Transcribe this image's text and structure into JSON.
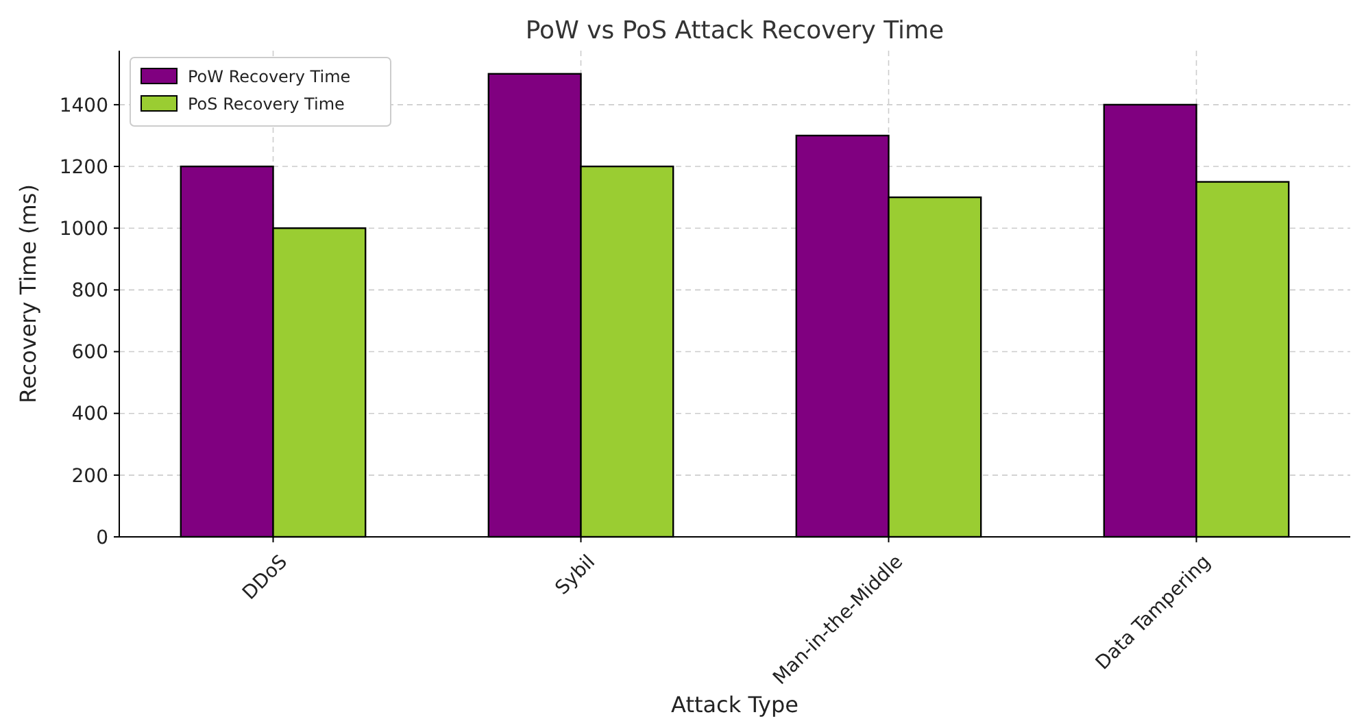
{
  "chart_data": {
    "type": "bar",
    "title": "PoW vs PoS Attack Recovery Time",
    "xlabel": "Attack Type",
    "ylabel": "Recovery Time (ms)",
    "categories": [
      "DDoS",
      "Sybil",
      "Man-in-the-Middle",
      "Data Tampering"
    ],
    "series": [
      {
        "name": "PoW Recovery Time",
        "color": "#800080",
        "values": [
          1200,
          1500,
          1300,
          1400
        ]
      },
      {
        "name": "PoS Recovery Time",
        "color": "#9acd32",
        "values": [
          1000,
          1200,
          1100,
          1150
        ]
      }
    ],
    "ylim": [
      0,
      1575
    ],
    "yticks": [
      0,
      200,
      400,
      600,
      800,
      1000,
      1200,
      1400
    ],
    "grid": true,
    "legend": "top left"
  }
}
